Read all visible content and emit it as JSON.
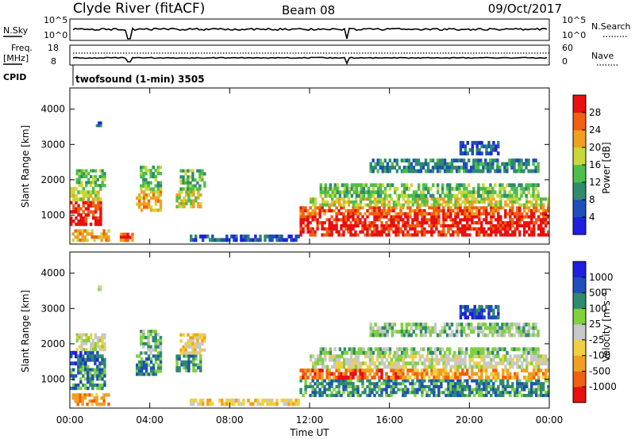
{
  "header": {
    "station": "Clyde River (fitACF)",
    "beam": "Beam 08",
    "date": "09/Oct/2017"
  },
  "strips": {
    "nsky_label": "N.Sky",
    "nsky_ticks": [
      "10^5",
      "10^0"
    ],
    "nsearch_label": "N.Search",
    "nsearch_ticks": [
      "10^5",
      "10^0"
    ],
    "freq_label_1": "Freq.",
    "freq_label_2": "[MHz]",
    "freq_ticks": [
      "18",
      "8"
    ],
    "nave_label": "Nave",
    "nave_ticks": [
      "60",
      "0"
    ],
    "cpid_label": "CPID",
    "cpid_value": "twofsound (1-min) 3505"
  },
  "colors": {
    "power_scale": [
      "#1f1fe0",
      "#1f4fb8",
      "#2f8a6e",
      "#4dbf4a",
      "#c8d83a",
      "#f0a020",
      "#f06010",
      "#e81010"
    ],
    "velocity_scale": [
      "#e81010",
      "#f06010",
      "#f0a020",
      "#f0d040",
      "#c8c8c8",
      "#80d040",
      "#2f8a6e",
      "#1f4fb8",
      "#1f1fe0"
    ]
  },
  "chart_data": [
    {
      "type": "heatmap",
      "name": "power",
      "ylabel": "Slant Range [km]",
      "ylim": [
        180,
        4600
      ],
      "yticks": [
        "1000",
        "2000",
        "3000",
        "4000"
      ],
      "ytick_values": [
        1000,
        2000,
        3000,
        4000
      ],
      "xlim": [
        0,
        24
      ],
      "colorbar_label": "Power [dB]",
      "colorbar_ticks": [
        "4",
        "8",
        "12",
        "16",
        "20",
        "24",
        "28"
      ],
      "colorbar_range": [
        0,
        32
      ],
      "cells": [
        {
          "t": [
            0.0,
            1.6
          ],
          "r": [
            700,
            1400
          ],
          "level": 7
        },
        {
          "t": [
            0.0,
            1.6
          ],
          "r": [
            1400,
            1800
          ],
          "level": 4
        },
        {
          "t": [
            0.3,
            1.8
          ],
          "r": [
            1800,
            2300
          ],
          "level": 3
        },
        {
          "t": [
            0.1,
            2.0
          ],
          "r": [
            250,
            600
          ],
          "level": 5
        },
        {
          "t": [
            2.5,
            3.3
          ],
          "r": [
            250,
            500
          ],
          "level": 6
        },
        {
          "t": [
            3.3,
            4.6
          ],
          "r": [
            1100,
            1700
          ],
          "level": 5
        },
        {
          "t": [
            3.5,
            4.6
          ],
          "r": [
            1700,
            2400
          ],
          "level": 3
        },
        {
          "t": [
            5.3,
            6.6
          ],
          "r": [
            1200,
            1700
          ],
          "level": 4
        },
        {
          "t": [
            5.5,
            6.8
          ],
          "r": [
            1700,
            2300
          ],
          "level": 3
        },
        {
          "t": [
            1.3,
            1.6
          ],
          "r": [
            3500,
            3650
          ],
          "level": 1
        },
        {
          "t": [
            11.5,
            24.0
          ],
          "r": [
            400,
            1000
          ],
          "level": 7
        },
        {
          "t": [
            11.5,
            24.0
          ],
          "r": [
            1000,
            1250
          ],
          "level": 6
        },
        {
          "t": [
            12.0,
            24.0
          ],
          "r": [
            1250,
            1500
          ],
          "level": 4
        },
        {
          "t": [
            12.5,
            23.5
          ],
          "r": [
            1500,
            1900
          ],
          "level": 3
        },
        {
          "t": [
            15.0,
            23.5
          ],
          "r": [
            2200,
            2600
          ],
          "level": 2
        },
        {
          "t": [
            6.0,
            11.5
          ],
          "r": [
            250,
            450
          ],
          "level": 1
        },
        {
          "t": [
            19.5,
            21.5
          ],
          "r": [
            2700,
            3100
          ],
          "level": 1
        }
      ]
    },
    {
      "type": "heatmap",
      "name": "velocity",
      "ylabel": "Slant Range [km]",
      "ylim": [
        180,
        4600
      ],
      "yticks": [
        "1000",
        "2000",
        "3000",
        "4000"
      ],
      "ytick_values": [
        1000,
        2000,
        3000,
        4000
      ],
      "xlim": [
        0,
        24
      ],
      "xlabel": "Time UT",
      "xticks": [
        "00:00",
        "04:00",
        "08:00",
        "12:00",
        "16:00",
        "20:00",
        "00:00"
      ],
      "xtick_values": [
        0,
        4,
        8,
        12,
        16,
        20,
        24
      ],
      "colorbar_label": "Velocity [m s⁻¹]",
      "colorbar_ticks": [
        "-1000",
        "-500",
        "-100",
        "-25",
        "25",
        "100",
        "500",
        "1000"
      ],
      "cells": [
        {
          "t": [
            0.0,
            1.8
          ],
          "r": [
            700,
            1400
          ],
          "level": 6
        },
        {
          "t": [
            0.0,
            1.8
          ],
          "r": [
            1400,
            1800
          ],
          "level": 7
        },
        {
          "t": [
            0.3,
            1.8
          ],
          "r": [
            1800,
            2300
          ],
          "level": 4
        },
        {
          "t": [
            0.1,
            2.0
          ],
          "r": [
            250,
            600
          ],
          "level": 2
        },
        {
          "t": [
            3.3,
            4.6
          ],
          "r": [
            1100,
            1700
          ],
          "level": 6
        },
        {
          "t": [
            3.5,
            4.6
          ],
          "r": [
            1700,
            2400
          ],
          "level": 5
        },
        {
          "t": [
            5.3,
            6.6
          ],
          "r": [
            1200,
            1700
          ],
          "level": 6
        },
        {
          "t": [
            5.5,
            6.8
          ],
          "r": [
            1700,
            2300
          ],
          "level": 3
        },
        {
          "t": [
            1.3,
            1.6
          ],
          "r": [
            3500,
            3650
          ],
          "level": 4
        },
        {
          "t": [
            11.5,
            24.0
          ],
          "r": [
            500,
            1000
          ],
          "level": 6
        },
        {
          "t": [
            11.5,
            16.5
          ],
          "r": [
            1000,
            1300
          ],
          "level": 1
        },
        {
          "t": [
            16.5,
            24.0
          ],
          "r": [
            1000,
            1300
          ],
          "level": 2
        },
        {
          "t": [
            12.0,
            24.0
          ],
          "r": [
            1300,
            1700
          ],
          "level": 4
        },
        {
          "t": [
            12.5,
            23.5
          ],
          "r": [
            1700,
            1900
          ],
          "level": 5
        },
        {
          "t": [
            15.0,
            23.5
          ],
          "r": [
            2200,
            2600
          ],
          "level": 5
        },
        {
          "t": [
            6.0,
            11.5
          ],
          "r": [
            250,
            450
          ],
          "level": 3
        },
        {
          "t": [
            19.5,
            21.5
          ],
          "r": [
            2700,
            3100
          ],
          "level": 7
        }
      ]
    }
  ]
}
